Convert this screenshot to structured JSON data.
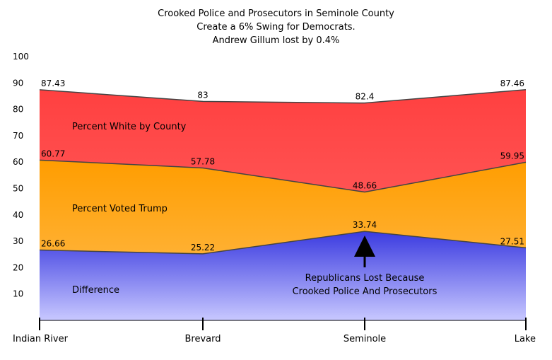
{
  "chart_data": {
    "type": "area",
    "title": [
      "Crooked Police and Prosecutors in Seminole County",
      "Create a 6% Swing for Democrats.",
      "Andrew Gillum lost by 0.4%"
    ],
    "categories": [
      "Indian River",
      "Brevard",
      "Seminole",
      "Lake"
    ],
    "ylim": [
      0,
      100
    ],
    "yticks": [
      100,
      90,
      80,
      70,
      60,
      50,
      40,
      30,
      20,
      10
    ],
    "series": [
      {
        "name": "Percent White by County",
        "values": [
          87.43,
          83,
          82.4,
          87.46
        ],
        "labels": [
          "87.43",
          "83",
          "82.4",
          "87.46"
        ],
        "color": "#ff5a5a"
      },
      {
        "name": "Percent Voted Trump",
        "values": [
          60.77,
          57.78,
          48.66,
          59.95
        ],
        "labels": [
          "60.77",
          "57.78",
          "48.66",
          "59.95"
        ],
        "color": "#ffa500"
      },
      {
        "name": "Difference",
        "values": [
          26.66,
          25.22,
          33.74,
          27.51
        ],
        "labels": [
          "26.66",
          "25.22",
          "33.74",
          "27.51"
        ],
        "color": "#4a4ae0"
      }
    ],
    "annotation": {
      "lines": [
        "Republicans Lost Because",
        "Crooked Police And Prosecutors"
      ],
      "target": "Seminole"
    },
    "grid": false,
    "legend": "none"
  }
}
